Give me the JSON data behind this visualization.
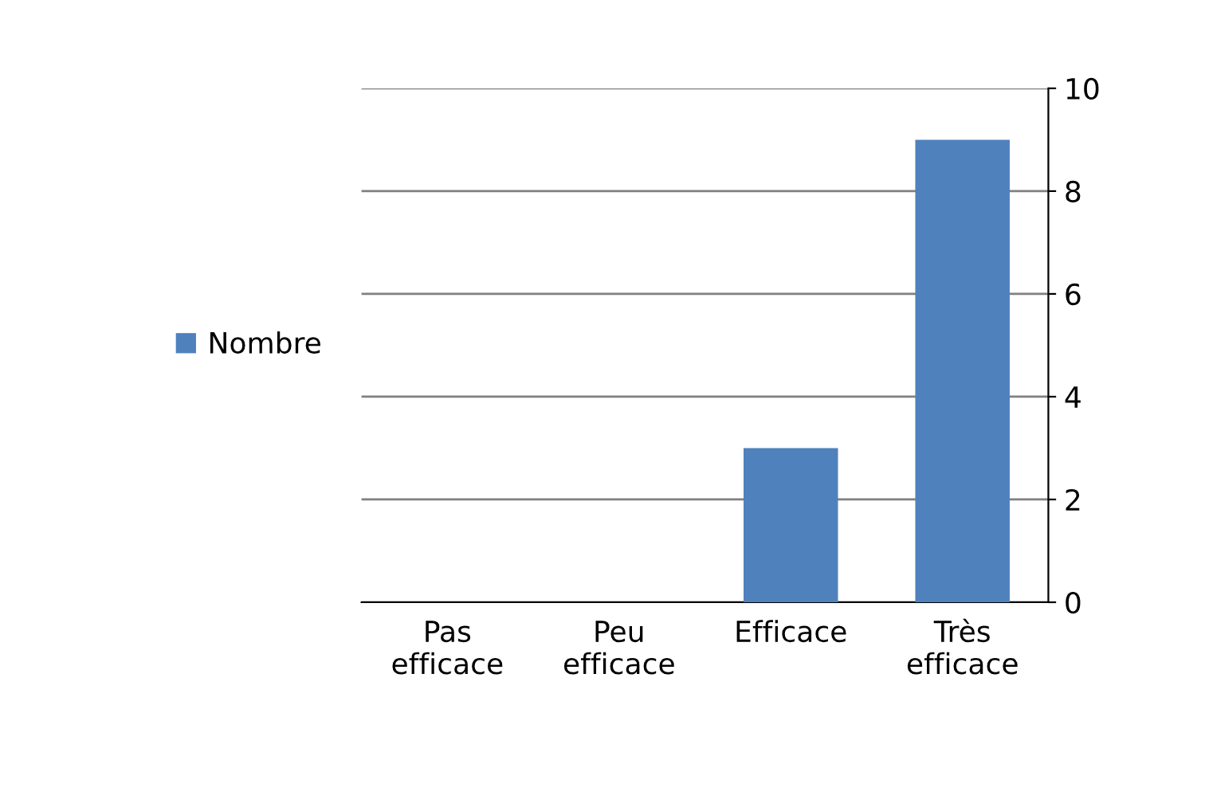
{
  "chart_data": {
    "type": "bar",
    "categories": [
      "Pas\nefficace",
      "Peu\nefficace",
      "Efficace",
      "Très\nefficace"
    ],
    "series": [
      {
        "name": "Nombre",
        "color": "#4f81bd",
        "values": [
          0,
          0,
          3,
          9
        ]
      }
    ],
    "ylim": [
      0,
      10
    ],
    "yticks": [
      0,
      2,
      4,
      6,
      8,
      10
    ],
    "grid": "y",
    "legend": "left"
  }
}
